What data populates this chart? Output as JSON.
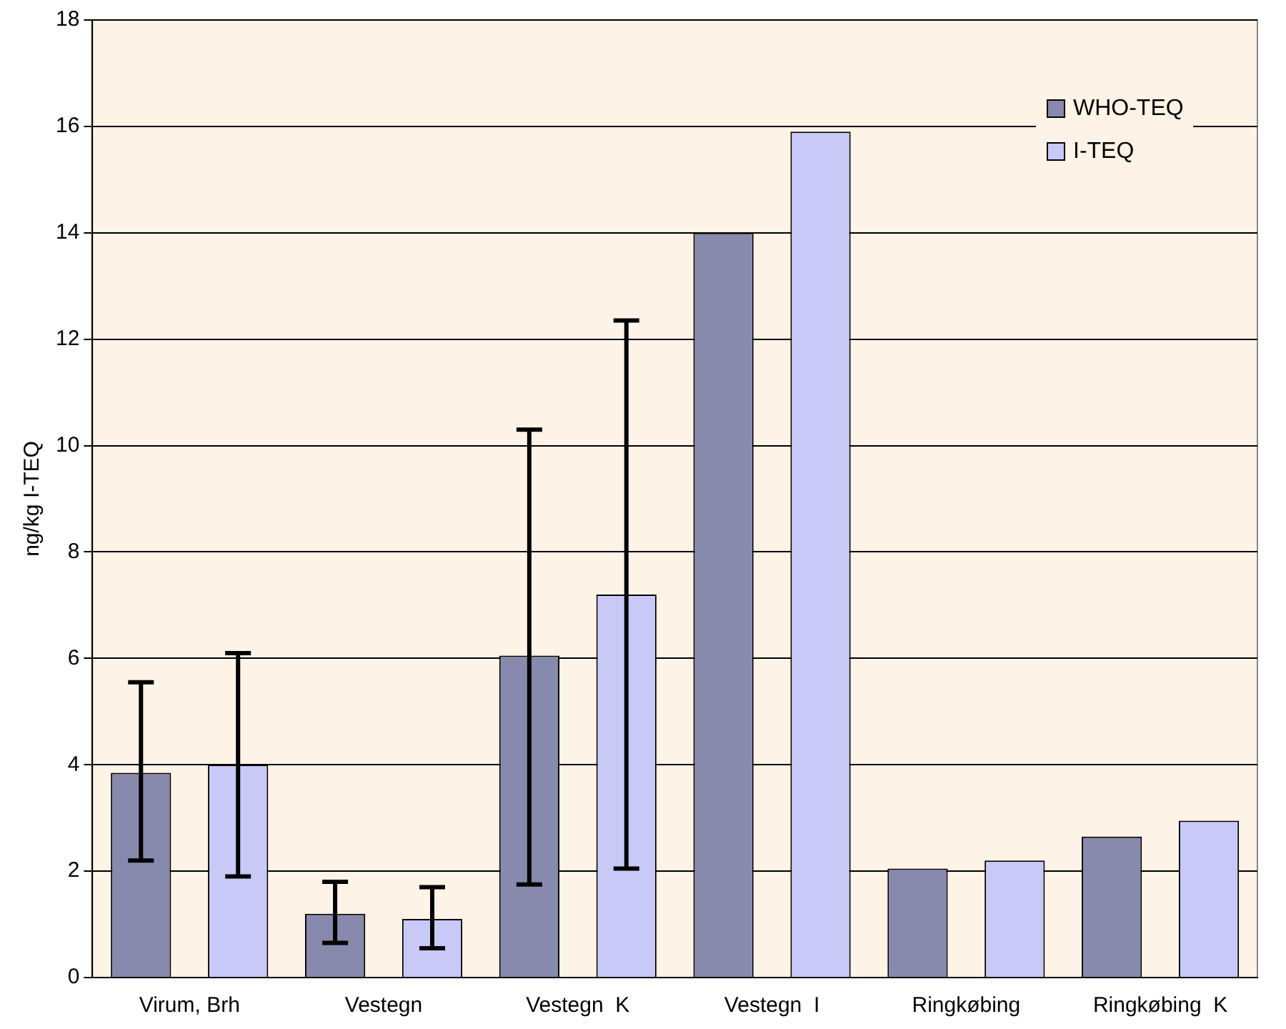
{
  "chart_data": {
    "type": "bar",
    "ylabel": "ng/kg I-TEQ",
    "categories": [
      "Virum, Brh",
      "Vestegn",
      "Vestegn  K",
      "Vestegn  I",
      "Ringkøbing",
      "Ringkøbing  K"
    ],
    "series": [
      {
        "name": "WHO-TEQ",
        "color": "#8789ad",
        "values": [
          3.85,
          1.2,
          6.05,
          14.0,
          2.05,
          2.65
        ],
        "errors": [
          [
            2.2,
            5.55
          ],
          [
            0.65,
            1.8
          ],
          [
            1.75,
            10.3
          ],
          null,
          null,
          null
        ]
      },
      {
        "name": "I-TEQ",
        "color": "#c9c9f8",
        "values": [
          4.0,
          1.1,
          7.2,
          15.9,
          2.2,
          2.95
        ],
        "errors": [
          [
            1.9,
            6.1
          ],
          [
            0.55,
            1.7
          ],
          [
            2.05,
            12.35
          ],
          null,
          null,
          null
        ]
      }
    ],
    "ylim": [
      0,
      18
    ],
    "yticks": [
      0,
      2,
      4,
      6,
      8,
      10,
      12,
      14,
      16,
      18
    ],
    "grid": "y",
    "legend": "top right"
  }
}
